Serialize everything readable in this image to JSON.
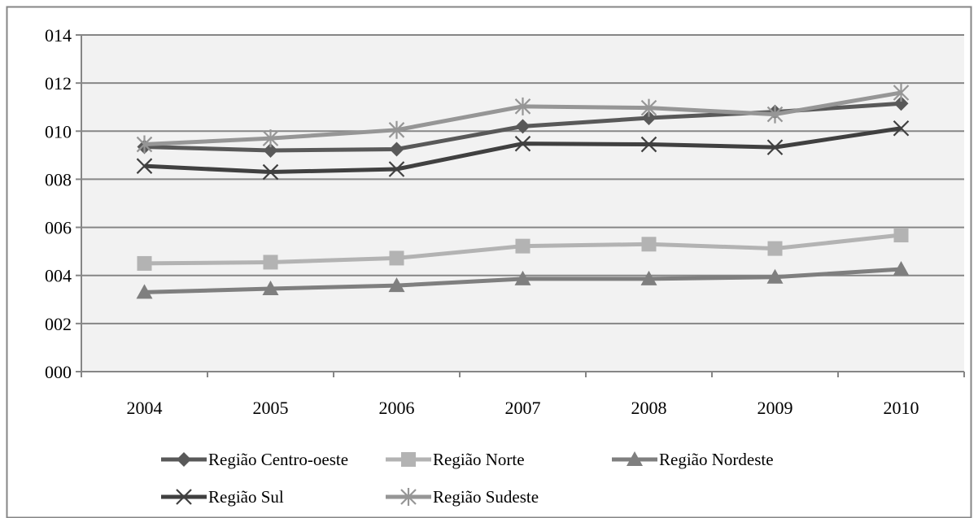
{
  "chart_data": {
    "type": "line",
    "title": "",
    "xlabel": "",
    "ylabel": "",
    "categories": [
      "2004",
      "2005",
      "2006",
      "2007",
      "2008",
      "2009",
      "2010"
    ],
    "y_ticks": [
      "000",
      "002",
      "004",
      "006",
      "008",
      "010",
      "012",
      "014"
    ],
    "ylim": [
      0,
      14
    ],
    "grid": true,
    "legend_position": "bottom",
    "series": [
      {
        "name": "Região Centro-oeste",
        "marker": "diamond",
        "color": "#595959",
        "values": [
          9.35,
          9.2,
          9.25,
          10.2,
          10.55,
          10.8,
          11.15
        ]
      },
      {
        "name": "Região Norte",
        "marker": "square",
        "color": "#b3b3b3",
        "values": [
          4.5,
          4.55,
          4.72,
          5.22,
          5.3,
          5.12,
          5.68
        ]
      },
      {
        "name": "Região Nordeste",
        "marker": "triangle",
        "color": "#7f7f7f",
        "values": [
          3.3,
          3.45,
          3.58,
          3.86,
          3.86,
          3.93,
          4.26
        ]
      },
      {
        "name": "Região Sul",
        "marker": "x",
        "color": "#404040",
        "values": [
          8.55,
          8.3,
          8.42,
          9.48,
          9.45,
          9.33,
          10.12
        ]
      },
      {
        "name": "Região Sudeste",
        "marker": "star",
        "color": "#969696",
        "values": [
          9.45,
          9.7,
          10.05,
          11.03,
          10.97,
          10.7,
          11.6
        ]
      }
    ]
  }
}
